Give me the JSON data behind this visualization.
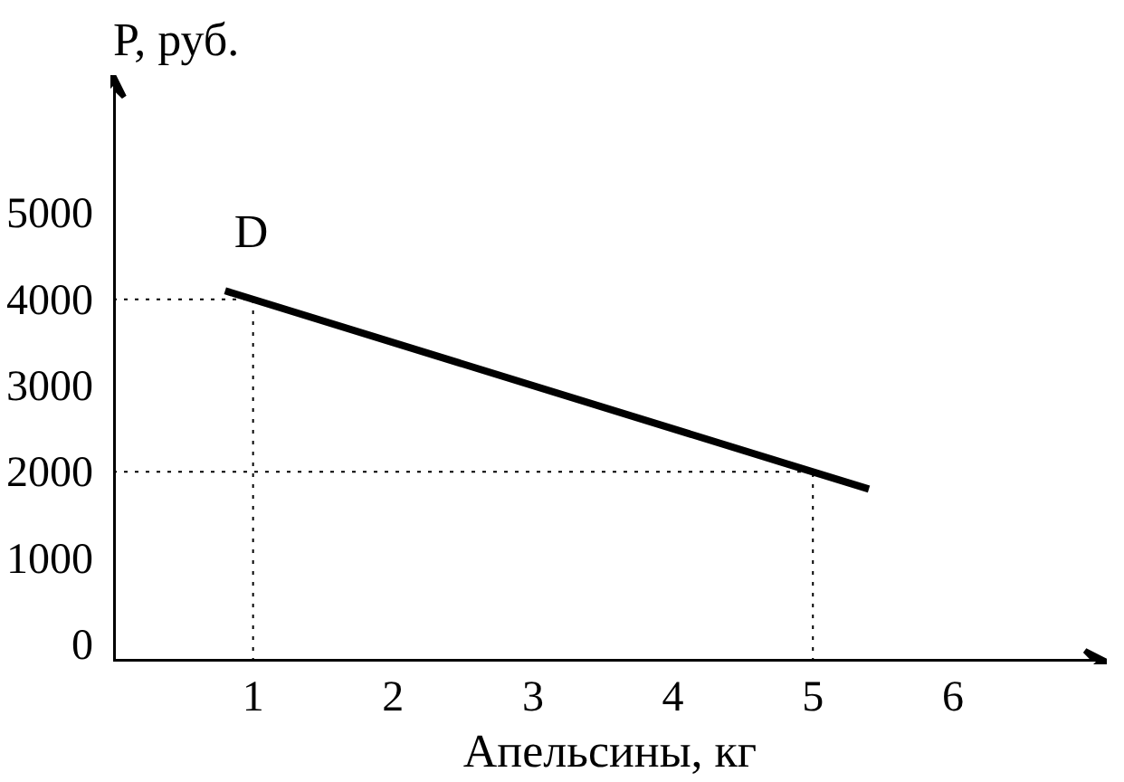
{
  "chart_data": {
    "type": "line",
    "xlabel": "Апельсины, кг",
    "ylabel": "P, руб.",
    "x": [
      0.8,
      1,
      5,
      5.4
    ],
    "series": [
      {
        "name": "D",
        "color": "#000000",
        "values": [
          4100,
          4000,
          2000,
          1800
        ]
      }
    ],
    "xlim": [
      0,
      7.1
    ],
    "ylim": [
      -200,
      6600
    ],
    "xticks": [
      1,
      2,
      3,
      4,
      5,
      6
    ],
    "yticks": [
      0,
      1000,
      2000,
      3000,
      4000,
      5000
    ],
    "ref_lines": [
      {
        "axis": "x",
        "value": 1,
        "line_style": "dotted",
        "color": "#000000"
      },
      {
        "axis": "x",
        "value": 5,
        "line_style": "dotted",
        "color": "#000000"
      },
      {
        "axis": "y",
        "value": 4000,
        "line_style": "dotted",
        "color": "#000000"
      },
      {
        "axis": "y",
        "value": 2000,
        "line_style": "dotted",
        "color": "#000000"
      }
    ],
    "grid": false
  }
}
